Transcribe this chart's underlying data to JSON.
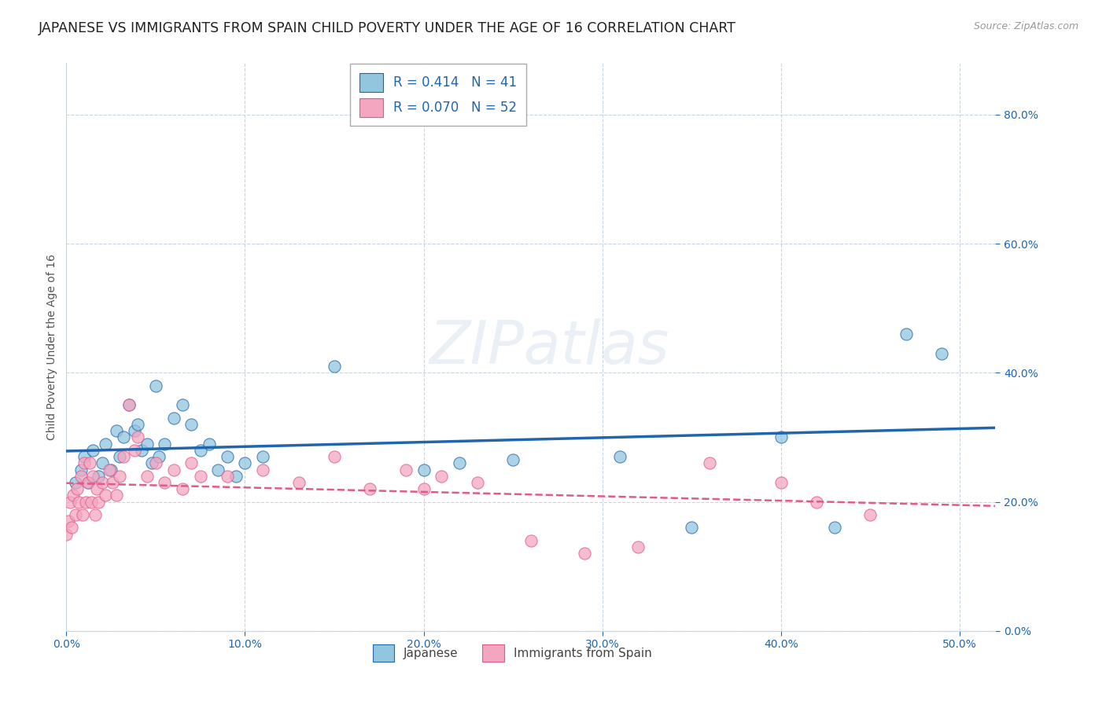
{
  "title": "JAPANESE VS IMMIGRANTS FROM SPAIN CHILD POVERTY UNDER THE AGE OF 16 CORRELATION CHART",
  "source": "Source: ZipAtlas.com",
  "ylabel": "Child Poverty Under the Age of 16",
  "legend_label1": "Japanese",
  "legend_label2": "Immigrants from Spain",
  "r1": "0.414",
  "n1": "41",
  "r2": "0.070",
  "n2": "52",
  "blue_scatter": "#92c5de",
  "pink_scatter": "#f4a6c0",
  "line_blue": "#2166ac",
  "line_pink_solid": "#e05a8a",
  "line_pink_dash": "#e05a8a",
  "watermark": "ZIPatlas",
  "japanese_x": [
    0.005,
    0.008,
    0.01,
    0.012,
    0.015,
    0.018,
    0.02,
    0.022,
    0.025,
    0.028,
    0.03,
    0.032,
    0.035,
    0.038,
    0.04,
    0.042,
    0.045,
    0.048,
    0.05,
    0.052,
    0.055,
    0.06,
    0.065,
    0.07,
    0.075,
    0.08,
    0.085,
    0.09,
    0.095,
    0.1,
    0.11,
    0.15,
    0.2,
    0.22,
    0.25,
    0.31,
    0.35,
    0.4,
    0.43,
    0.47,
    0.49
  ],
  "japanese_y": [
    0.23,
    0.25,
    0.27,
    0.23,
    0.28,
    0.24,
    0.26,
    0.29,
    0.25,
    0.31,
    0.27,
    0.3,
    0.35,
    0.31,
    0.32,
    0.28,
    0.29,
    0.26,
    0.38,
    0.27,
    0.29,
    0.33,
    0.35,
    0.32,
    0.28,
    0.29,
    0.25,
    0.27,
    0.24,
    0.26,
    0.27,
    0.41,
    0.25,
    0.26,
    0.265,
    0.27,
    0.16,
    0.3,
    0.16,
    0.46,
    0.43
  ],
  "spain_x": [
    0.0,
    0.001,
    0.002,
    0.003,
    0.004,
    0.005,
    0.006,
    0.007,
    0.008,
    0.009,
    0.01,
    0.011,
    0.012,
    0.013,
    0.014,
    0.015,
    0.016,
    0.017,
    0.018,
    0.02,
    0.022,
    0.024,
    0.026,
    0.028,
    0.03,
    0.032,
    0.035,
    0.038,
    0.04,
    0.045,
    0.05,
    0.055,
    0.06,
    0.065,
    0.07,
    0.075,
    0.09,
    0.11,
    0.13,
    0.15,
    0.17,
    0.19,
    0.2,
    0.21,
    0.23,
    0.26,
    0.29,
    0.32,
    0.36,
    0.4,
    0.42,
    0.45
  ],
  "spain_y": [
    0.15,
    0.17,
    0.2,
    0.16,
    0.21,
    0.18,
    0.22,
    0.2,
    0.24,
    0.18,
    0.26,
    0.2,
    0.23,
    0.26,
    0.2,
    0.24,
    0.18,
    0.22,
    0.2,
    0.23,
    0.21,
    0.25,
    0.23,
    0.21,
    0.24,
    0.27,
    0.35,
    0.28,
    0.3,
    0.24,
    0.26,
    0.23,
    0.25,
    0.22,
    0.26,
    0.24,
    0.24,
    0.25,
    0.23,
    0.27,
    0.22,
    0.25,
    0.22,
    0.24,
    0.23,
    0.14,
    0.12,
    0.13,
    0.26,
    0.23,
    0.2,
    0.18
  ],
  "xlim": [
    0,
    0.52
  ],
  "ylim": [
    0,
    0.88
  ],
  "xtick_vals": [
    0.0,
    0.1,
    0.2,
    0.3,
    0.4,
    0.5
  ],
  "ytick_vals": [
    0.0,
    0.2,
    0.4,
    0.6,
    0.8
  ],
  "background_color": "#ffffff",
  "grid_color": "#c8d4df",
  "title_fontsize": 12.5,
  "source_fontsize": 9,
  "tick_fontsize": 10,
  "ylabel_fontsize": 10
}
